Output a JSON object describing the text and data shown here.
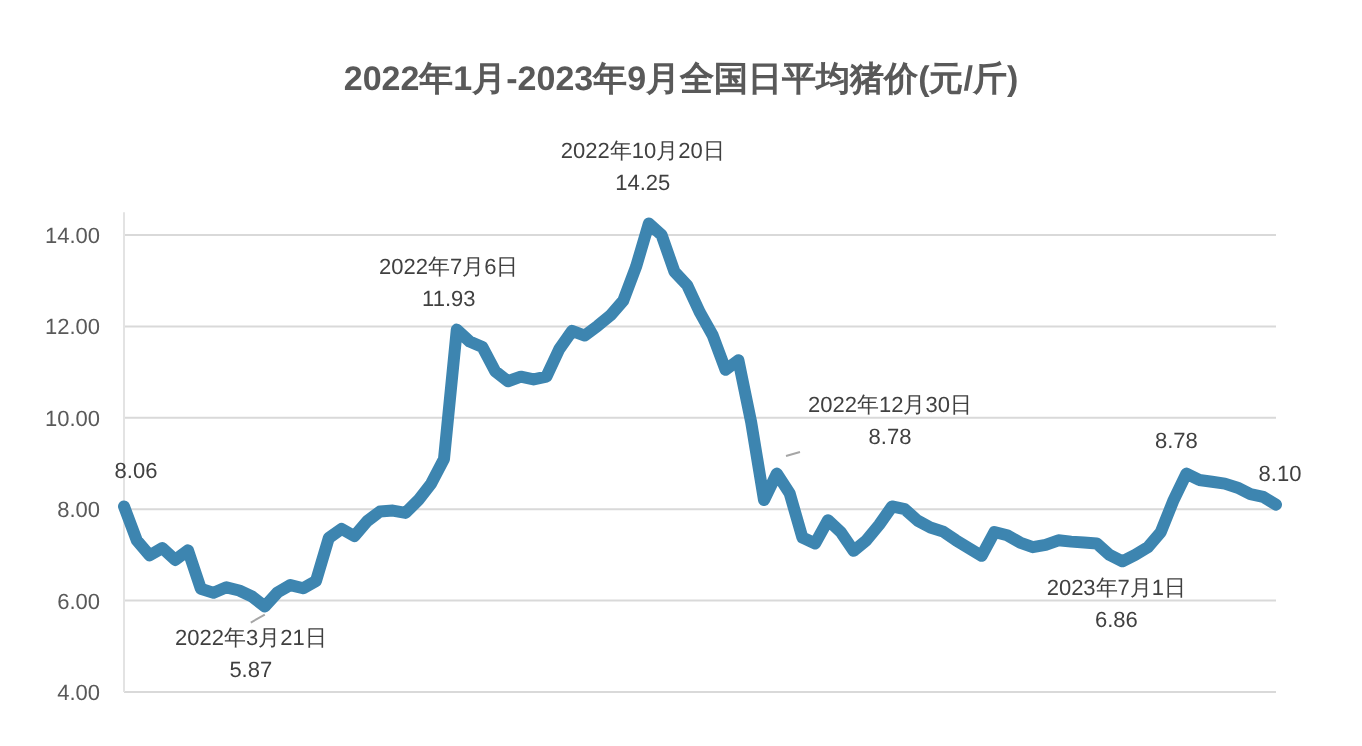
{
  "chart_data": {
    "type": "line",
    "title": "2022年1月-2023年9月全国日平均猪价(元/斤)",
    "marker": "none",
    "line_style": "solid",
    "grid": "y",
    "tick_labels": "y",
    "ylim": [
      4,
      14.5
    ],
    "yticks": [
      {
        "value": 4,
        "label": "4.00"
      },
      {
        "value": 6,
        "label": "6.00"
      },
      {
        "value": 8,
        "label": "8.00"
      },
      {
        "value": 10,
        "label": "10.00"
      },
      {
        "value": 12,
        "label": "12.00"
      },
      {
        "value": 14,
        "label": "14.00"
      }
    ],
    "categories": [
      null,
      null,
      null,
      null,
      null,
      null,
      null,
      null,
      null,
      null,
      null,
      null,
      null,
      null,
      null,
      null,
      null,
      null,
      null,
      null,
      null,
      null,
      null,
      null,
      null,
      null,
      null,
      null,
      null,
      null,
      null,
      null,
      null,
      null,
      null,
      null,
      null,
      null,
      null,
      null,
      null,
      null,
      null,
      null,
      null,
      null,
      null,
      null,
      null,
      null,
      null,
      null,
      null,
      null,
      null,
      null,
      null,
      null,
      null,
      null,
      null,
      null,
      null,
      null,
      null,
      null,
      null,
      null,
      null,
      null,
      null,
      null,
      null,
      null,
      null,
      null,
      null,
      null,
      null,
      null,
      null,
      null,
      null,
      null,
      null,
      null,
      null,
      null,
      null,
      null,
      null
    ],
    "series": [
      {
        "color": "#3d85b0",
        "values": [
          8.06,
          7.32,
          6.99,
          7.15,
          6.89,
          7.1,
          6.26,
          6.17,
          6.29,
          6.22,
          6.09,
          5.87,
          6.18,
          6.34,
          6.27,
          6.43,
          7.37,
          7.57,
          7.41,
          7.74,
          7.95,
          7.97,
          7.92,
          8.2,
          8.56,
          9.1,
          11.93,
          11.67,
          11.55,
          11.02,
          10.8,
          10.9,
          10.84,
          10.9,
          11.5,
          11.9,
          11.8,
          12.01,
          12.24,
          12.56,
          13.3,
          14.25,
          14.0,
          13.2,
          12.9,
          12.3,
          11.8,
          11.05,
          11.26,
          9.9,
          8.2,
          8.78,
          8.35,
          7.38,
          7.25,
          7.76,
          7.5,
          7.09,
          7.32,
          7.66,
          8.06,
          8.0,
          7.75,
          7.6,
          7.51,
          7.32,
          7.15,
          6.98,
          7.5,
          7.43,
          7.27,
          7.17,
          7.22,
          7.32,
          7.29,
          7.27,
          7.25,
          7.0,
          6.86,
          7.0,
          7.17,
          7.5,
          8.2,
          8.78,
          8.64,
          8.6,
          8.56,
          8.47,
          8.33,
          8.27,
          8.1
        ]
      }
    ],
    "annotations": [
      {
        "text": "8.06",
        "y": 8.06
      },
      {
        "text": "2022年3月21日\n5.87",
        "y": 5.87
      },
      {
        "text": "2022年7月6日\n11.93",
        "y": 11.93
      },
      {
        "text": "2022年10月20日\n14.25",
        "y": 14.25
      },
      "2022年12月30日\n8.78",
      {
        "text": "2023年7月1日\n6.86",
        "y": 6.86
      },
      {
        "text": "8.78",
        "y": 8.78
      },
      {
        "text": "8.10",
        "y": 8.1
      }
    ]
  }
}
